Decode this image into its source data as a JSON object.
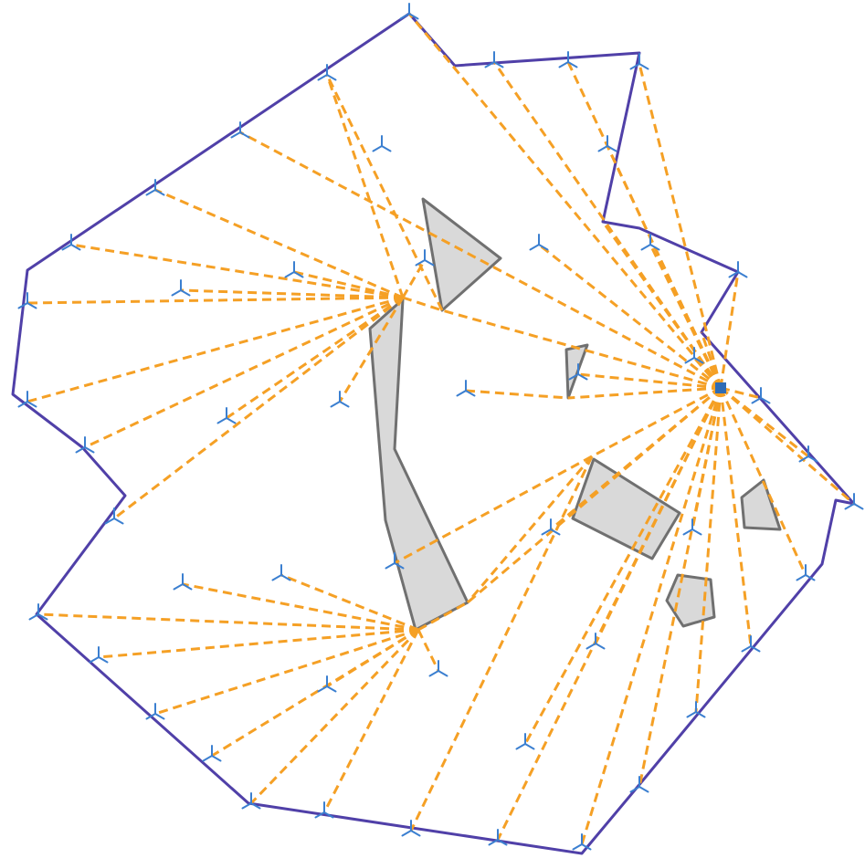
{
  "diagram": {
    "colors": {
      "boundary": "#5040a8",
      "obstacle_fill": "#d9d9d9",
      "obstacle_stroke": "#707070",
      "path": "#f5a025",
      "node_marker": "#3b7fd0",
      "source_marker": "#2f6cb5"
    },
    "icons": {
      "node": "tripod-node-icon",
      "source": "square-source-icon"
    },
    "boundary": {
      "name": "outer-boundary"
    },
    "obstacles": [
      {
        "name": "obstacle-triangle-top"
      },
      {
        "name": "obstacle-long-central"
      },
      {
        "name": "obstacle-small-sliver"
      },
      {
        "name": "obstacle-rectangle"
      },
      {
        "name": "obstacle-small-right"
      },
      {
        "name": "obstacle-pentagon"
      }
    ]
  }
}
